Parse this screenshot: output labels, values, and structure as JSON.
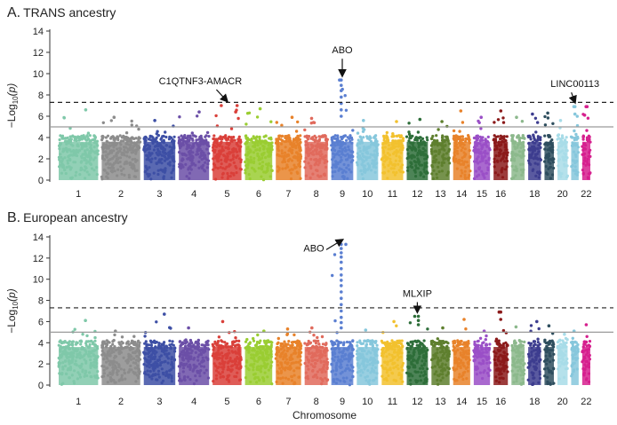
{
  "chart_data": [
    {
      "type": "scatter",
      "panel_letter": "A.",
      "title": "TRANS ancestry",
      "ylabel_prefix": "−Log",
      "ylabel_sub": "10",
      "ylabel_var": "(p)",
      "ylim": [
        0,
        14
      ],
      "yticks": [
        0,
        2,
        4,
        6,
        8,
        10,
        12,
        14
      ],
      "genome_wide_line": 7.3,
      "suggestive_line": 5.0,
      "chromosomes": [
        {
          "chr": "1",
          "label": "1",
          "color": "#7FC8A9",
          "peak": 6.6
        },
        {
          "chr": "2",
          "label": "2",
          "color": "#8C8C8C",
          "peak": 5.9
        },
        {
          "chr": "3",
          "label": "3",
          "color": "#3D4FA5",
          "peak": 5.6
        },
        {
          "chr": "4",
          "label": "4",
          "color": "#6B4FA7",
          "peak": 6.4
        },
        {
          "chr": "5",
          "label": "5",
          "color": "#D9403A",
          "peak": 7.0
        },
        {
          "chr": "6",
          "label": "6",
          "color": "#9ACD32",
          "peak": 6.7
        },
        {
          "chr": "7",
          "label": "7",
          "color": "#E8822A",
          "peak": 5.9
        },
        {
          "chr": "8",
          "label": "8",
          "color": "#E06A5C",
          "peak": 5.8
        },
        {
          "chr": "9",
          "label": "9",
          "color": "#5B7FD1",
          "peak": 9.4
        },
        {
          "chr": "10",
          "label": "10",
          "color": "#86C7DC",
          "peak": 5.6
        },
        {
          "chr": "11",
          "label": "11",
          "color": "#F2C12E",
          "peak": 5.5
        },
        {
          "chr": "12",
          "label": "12",
          "color": "#2E6E3A",
          "peak": 5.7
        },
        {
          "chr": "13",
          "label": "13",
          "color": "#5E7F2E",
          "peak": 5.5
        },
        {
          "chr": "14",
          "label": "14",
          "color": "#E8822A",
          "peak": 6.5
        },
        {
          "chr": "15",
          "label": "15",
          "color": "#9A4FC7",
          "peak": 5.9
        },
        {
          "chr": "16",
          "label": "16",
          "color": "#8B1A1A",
          "peak": 6.5
        },
        {
          "chr": "17",
          "label": "",
          "color": "#8CB88C",
          "peak": 5.9
        },
        {
          "chr": "18",
          "label": "18",
          "color": "#3D3D8F",
          "peak": 6.2
        },
        {
          "chr": "19",
          "label": "",
          "color": "#2E4E5E",
          "peak": 6.3
        },
        {
          "chr": "20",
          "label": "20",
          "color": "#A8DCE8",
          "peak": 5.6
        },
        {
          "chr": "21",
          "label": "",
          "color": "#86C7DC",
          "peak": 6.9
        },
        {
          "chr": "22",
          "label": "22",
          "color": "#D6208E",
          "peak": 6.9
        }
      ],
      "annotations": [
        {
          "text": "C1QTNF3-AMACR",
          "chr": "5",
          "value": 7.0
        },
        {
          "text": "ABO",
          "chr": "9",
          "value": 9.4
        },
        {
          "text": "LINC00113",
          "chr": "21",
          "value": 6.9
        }
      ]
    },
    {
      "type": "scatter",
      "panel_letter": "B.",
      "title": "European ancestry",
      "ylabel_prefix": "−Log",
      "ylabel_sub": "10",
      "ylabel_var": "(p)",
      "xlabel": "Chromosome",
      "ylim": [
        0,
        14
      ],
      "yticks": [
        0,
        2,
        4,
        6,
        8,
        10,
        12,
        14
      ],
      "genome_wide_line": 7.3,
      "suggestive_line": 5.0,
      "chromosomes": [
        {
          "chr": "1",
          "label": "1",
          "color": "#7FC8A9",
          "peak": 6.1
        },
        {
          "chr": "2",
          "label": "2",
          "color": "#8C8C8C",
          "peak": 5.1
        },
        {
          "chr": "3",
          "label": "3",
          "color": "#3D4FA5",
          "peak": 6.7
        },
        {
          "chr": "4",
          "label": "4",
          "color": "#6B4FA7",
          "peak": 5.4
        },
        {
          "chr": "5",
          "label": "5",
          "color": "#D9403A",
          "peak": 6.0
        },
        {
          "chr": "6",
          "label": "6",
          "color": "#9ACD32",
          "peak": 5.1
        },
        {
          "chr": "7",
          "label": "7",
          "color": "#E8822A",
          "peak": 5.3
        },
        {
          "chr": "8",
          "label": "8",
          "color": "#E06A5C",
          "peak": 5.4
        },
        {
          "chr": "9",
          "label": "9",
          "color": "#5B7FD1",
          "peak": 13.3
        },
        {
          "chr": "10",
          "label": "10",
          "color": "#86C7DC",
          "peak": 5.2
        },
        {
          "chr": "11",
          "label": "11",
          "color": "#F2C12E",
          "peak": 6.0
        },
        {
          "chr": "12",
          "label": "12",
          "color": "#2E6E3A",
          "peak": 6.5
        },
        {
          "chr": "13",
          "label": "13",
          "color": "#5E7F2E",
          "peak": 5.4
        },
        {
          "chr": "14",
          "label": "14",
          "color": "#E8822A",
          "peak": 6.2
        },
        {
          "chr": "15",
          "label": "15",
          "color": "#9A4FC7",
          "peak": 5.1
        },
        {
          "chr": "16",
          "label": "16",
          "color": "#8B1A1A",
          "peak": 6.9
        },
        {
          "chr": "17",
          "label": "",
          "color": "#8CB88C",
          "peak": 5.5
        },
        {
          "chr": "18",
          "label": "18",
          "color": "#3D3D8F",
          "peak": 6.0
        },
        {
          "chr": "19",
          "label": "",
          "color": "#2E4E5E",
          "peak": 5.6
        },
        {
          "chr": "20",
          "label": "20",
          "color": "#A8DCE8",
          "peak": 4.8
        },
        {
          "chr": "21",
          "label": "",
          "color": "#86C7DC",
          "peak": 5.1
        },
        {
          "chr": "22",
          "label": "22",
          "color": "#D6208E",
          "peak": 5.7
        }
      ],
      "annotations": [
        {
          "text": "ABO",
          "chr": "9",
          "value": 13.3
        },
        {
          "text": "MLXIP",
          "chr": "12",
          "value": 6.5
        }
      ]
    }
  ]
}
